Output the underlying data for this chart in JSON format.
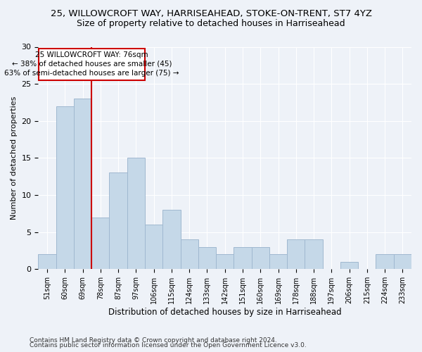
{
  "title1": "25, WILLOWCROFT WAY, HARRISEAHEAD, STOKE-ON-TRENT, ST7 4YZ",
  "title2": "Size of property relative to detached houses in Harriseahead",
  "xlabel": "Distribution of detached houses by size in Harriseahead",
  "ylabel": "Number of detached properties",
  "bin_labels": [
    "51sqm",
    "60sqm",
    "69sqm",
    "78sqm",
    "87sqm",
    "97sqm",
    "106sqm",
    "115sqm",
    "124sqm",
    "133sqm",
    "142sqm",
    "151sqm",
    "160sqm",
    "169sqm",
    "178sqm",
    "188sqm",
    "197sqm",
    "206sqm",
    "215sqm",
    "224sqm",
    "233sqm"
  ],
  "values": [
    2,
    22,
    23,
    7,
    13,
    15,
    6,
    8,
    4,
    3,
    2,
    3,
    3,
    2,
    4,
    4,
    0,
    1,
    0,
    2,
    2
  ],
  "bar_color": "#c5d8e8",
  "bar_edge_color": "#a0b8d0",
  "vline_x_index": 2.5,
  "vline_color": "#cc0000",
  "annotation_line1": "25 WILLOWCROFT WAY: 76sqm",
  "annotation_line2": "← 38% of detached houses are smaller (45)",
  "annotation_line3": "63% of semi-detached houses are larger (75) →",
  "annotation_box_color": "#cc0000",
  "annotation_text_color": "#000000",
  "footnote1": "Contains HM Land Registry data © Crown copyright and database right 2024.",
  "footnote2": "Contains public sector information licensed under the Open Government Licence v3.0.",
  "ylim": [
    0,
    30
  ],
  "background_color": "#eef2f8",
  "plot_background": "#eef2f8"
}
